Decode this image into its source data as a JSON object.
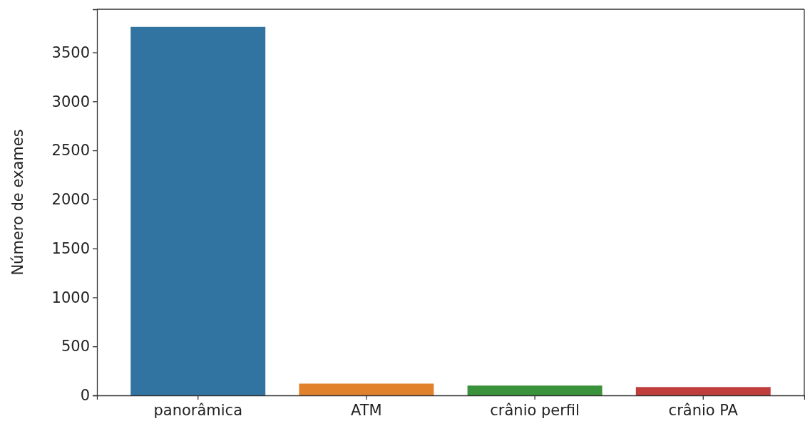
{
  "chart_data": {
    "type": "bar",
    "ylabel": "Número de exames",
    "categories": [
      "panorâmica",
      "ATM",
      "crânio perfil",
      "crânio PA"
    ],
    "values": [
      3760,
      120,
      100,
      85
    ],
    "colors": [
      "#3274a1",
      "#e1812c",
      "#3a923a",
      "#c03d3e"
    ],
    "ylim": [
      0,
      3940
    ],
    "yticks": [
      0,
      500,
      1000,
      1500,
      2000,
      2500,
      3000,
      3500
    ],
    "grid": false
  }
}
